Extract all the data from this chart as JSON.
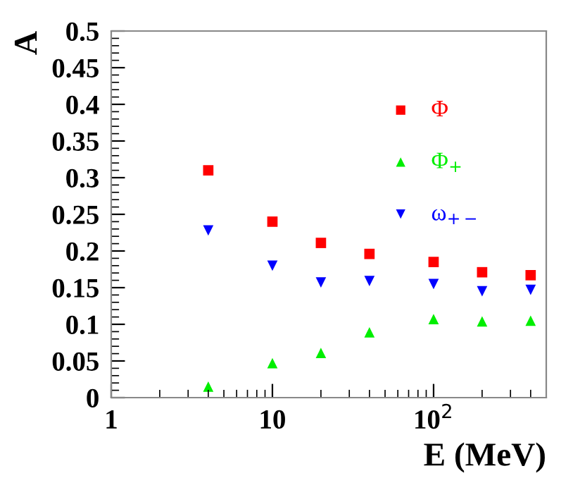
{
  "chart_data": {
    "type": "scatter",
    "xlabel": "E (MeV)",
    "ylabel": "A",
    "log": "x",
    "xlim": [
      1,
      500
    ],
    "xticks": [
      1,
      10,
      {
        "value": 100,
        "label": "10$^{2}$"
      }
    ],
    "ylim": [
      0,
      0.5
    ],
    "yticks": [
      0,
      0.05,
      0.1,
      0.15,
      0.2,
      0.25,
      0.3,
      0.35,
      0.4,
      0.45,
      0.5
    ],
    "x": [
      4,
      10,
      20,
      40,
      100,
      200,
      400
    ],
    "legend": "top right",
    "grid": false,
    "series": [
      {
        "name": "Φ",
        "color": "#ff0000",
        "marker": "square",
        "values": [
          0.31,
          0.24,
          0.211,
          0.196,
          0.185,
          0.171,
          0.167
        ]
      },
      {
        "name": "Φ$_{+}$",
        "color": "#00ee00",
        "marker": "triangle",
        "values": [
          0.015,
          0.047,
          0.061,
          0.089,
          0.107,
          0.104,
          0.105
        ]
      },
      {
        "name": "ω$_{+−}$",
        "color": "#0000ff",
        "marker": "triangle_down",
        "values": [
          0.228,
          0.18,
          0.157,
          0.159,
          0.155,
          0.145,
          0.147
        ]
      }
    ]
  }
}
